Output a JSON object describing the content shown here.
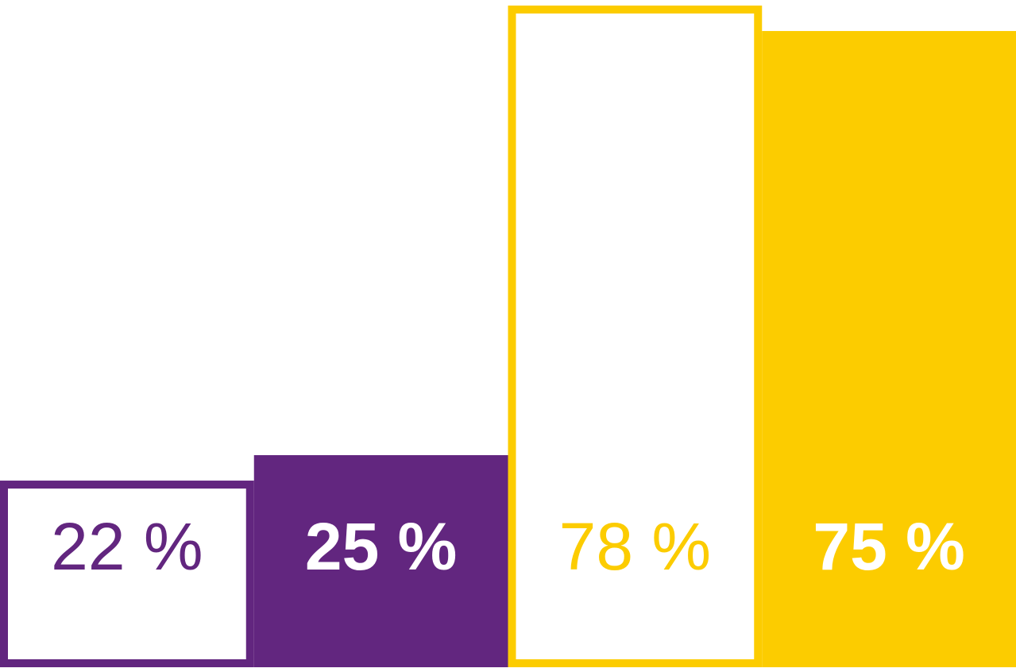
{
  "chart_data": {
    "type": "bar",
    "categories": [
      null,
      null,
      null,
      null
    ],
    "values": [
      22,
      25,
      78,
      75
    ],
    "value_labels": [
      "22 %",
      "25 %",
      "78 %",
      "75 %"
    ],
    "colors": [
      "#62267f",
      "#62267f",
      "#fccc00",
      "#fccc00"
    ],
    "filled": [
      false,
      true,
      false,
      true
    ]
  }
}
